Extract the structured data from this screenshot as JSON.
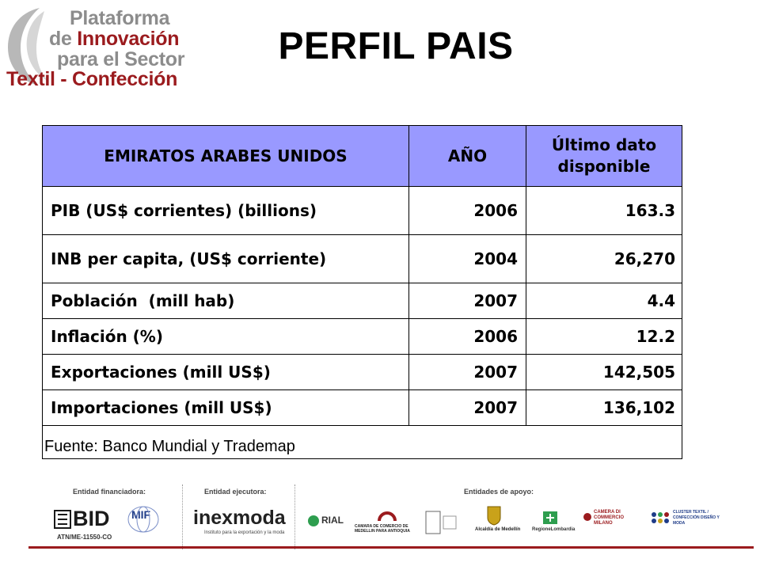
{
  "logo": {
    "line1": "Plataforma",
    "line2_prefix": "de ",
    "line2_accent": "Innovación",
    "line3": "para el Sector",
    "line4": "Textil - Confección"
  },
  "title": "PERFIL PAIS",
  "table": {
    "headers": [
      "EMIRATOS ARABES UNIDOS",
      "AÑO",
      "Último dato disponible"
    ],
    "rows": [
      {
        "label": "PIB (US$ corrientes) (billions)",
        "year": "2006",
        "value": "163.3"
      },
      {
        "label": "INB per capita, (US$ corriente)",
        "year": "2004",
        "value": "26,270"
      },
      {
        "label": "Población  (mill hab)",
        "year": "2007",
        "value": "4.4"
      },
      {
        "label": "Inflación (%)",
        "year": "2006",
        "value": "12.2"
      },
      {
        "label": "Exportaciones (mill US$)",
        "year": "2007",
        "value": "142,505"
      },
      {
        "label": "Importaciones (mill US$)",
        "year": "2007",
        "value": "136,102"
      }
    ],
    "source": "Fuente: Banco Mundial y Trademap"
  },
  "sponsors": {
    "financing_label": "Entidad financiadora:",
    "executing_label": "Entidad ejecutora:",
    "support_label": "Entidades de apoyo:",
    "bid": "BID",
    "bid_code": "ATN/ME-11550-CO",
    "mif": "MIF",
    "inexmoda": "inexmoda",
    "inexmoda_tagline": "Instituto para la exportación y la moda",
    "rial": "RIAL",
    "camara_medellin": "CAMARA DE COMERCIO DE MEDELLIN PARA ANTIOQUIA",
    "alcaldia": "Alcaldía de Medellín",
    "regione": "RegioneLombardia",
    "camara_milano": "CAMERA DI COMMERCIO MILANO",
    "cluster": "CLUSTER TEXTIL / CONFECCIÓN DISEÑO Y MODA"
  },
  "colors": {
    "header_bg": "#9999ff",
    "brand_red": "#9b1b1e",
    "brand_grey": "#8c8c8c"
  }
}
